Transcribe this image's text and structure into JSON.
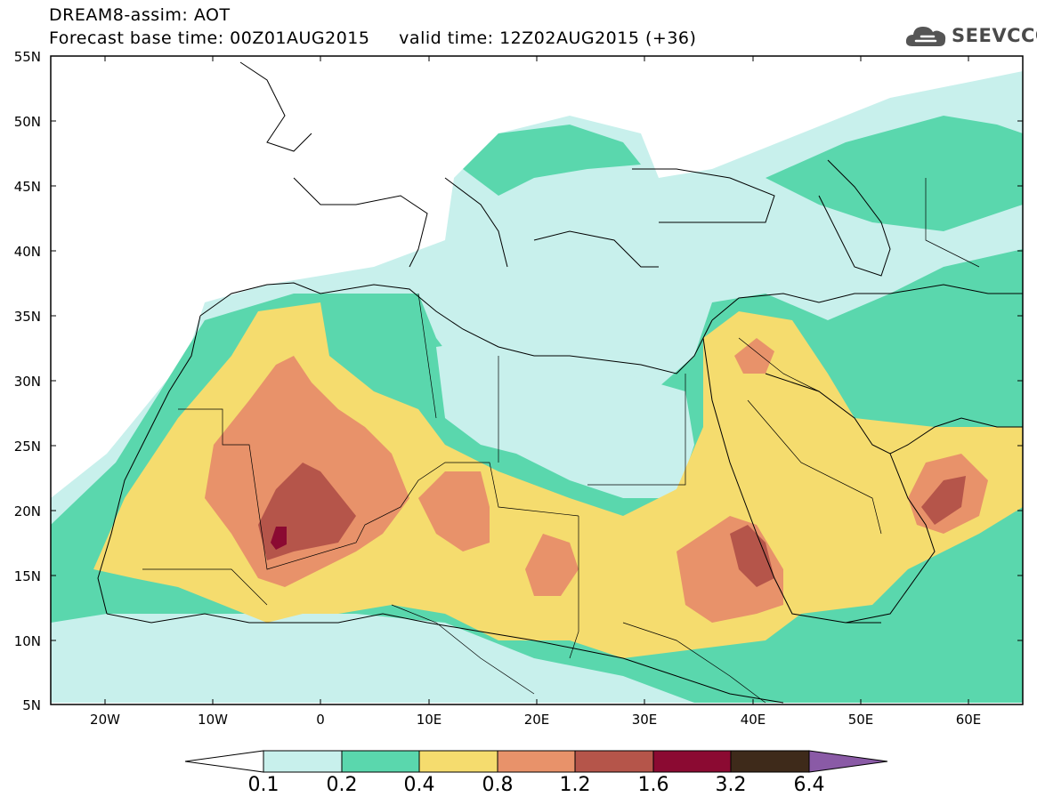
{
  "header": {
    "title_line1": "DREAM8-assim: AOT",
    "title_line2": "Forecast base time: 00Z01AUG2015     valid time: 12Z02AUG2015 (+36)"
  },
  "logo": {
    "text": "SEEVCCC",
    "icon": "cloud-icon"
  },
  "map": {
    "type": "contour",
    "variable": "AOT",
    "lon_range": [
      -25,
      65
    ],
    "lat_range": [
      5,
      55
    ],
    "lat_labels": [
      "55N",
      "50N",
      "45N",
      "40N",
      "35N",
      "30N",
      "25N",
      "20N",
      "15N",
      "10N",
      "5N"
    ],
    "lat_values": [
      55,
      50,
      45,
      40,
      35,
      30,
      25,
      20,
      15,
      10,
      5
    ],
    "lon_labels": [
      "20W",
      "10W",
      "0",
      "10E",
      "20E",
      "30E",
      "40E",
      "50E",
      "60E"
    ],
    "lon_values": [
      -20,
      -10,
      0,
      10,
      20,
      30,
      40,
      50,
      60
    ],
    "colors": {
      "0.1": "#c8f0ec",
      "0.2": "#5ad7ad",
      "0.4": "#f5dc6e",
      "0.8": "#e8926a",
      "1.2": "#b5554a",
      "1.6": "#8b0a32",
      "3.2": "#3e2a1a",
      "6.4": "#8a5aa6"
    }
  },
  "colorbar": {
    "labels": [
      "0.1",
      "0.2",
      "0.4",
      "0.8",
      "1.2",
      "1.6",
      "3.2",
      "6.4"
    ],
    "colors": [
      "#c8f0ec",
      "#5ad7ad",
      "#f5dc6e",
      "#e8926a",
      "#b5554a",
      "#8b0a32",
      "#3e2a1a",
      "#8a5aa6"
    ]
  }
}
